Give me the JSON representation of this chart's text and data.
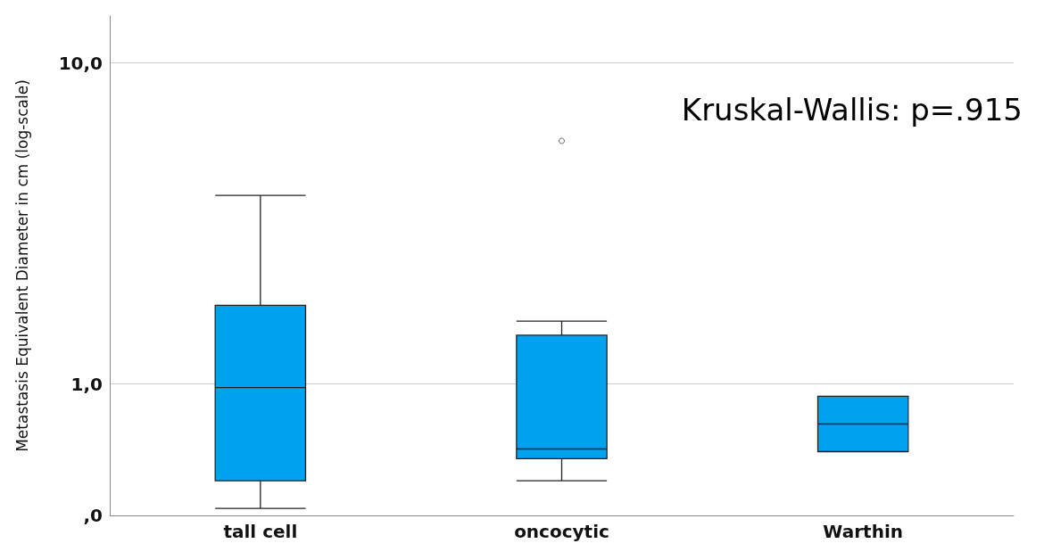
{
  "chart_data": {
    "type": "box",
    "ylabel": "Metastasis Equivalent Diameter in cm (log-scale)",
    "categories": [
      "tall cell",
      "oncocytic",
      "Warthin"
    ],
    "color": "#00a2f0",
    "log": "y",
    "ylim": [
      0.39,
      14
    ],
    "yticks": [
      {
        "value": 0.39,
        "label": ",0"
      },
      {
        "value": 1,
        "label": "1,0"
      },
      {
        "value": 10,
        "label": "10,0"
      }
    ],
    "grid": "y",
    "boxes": [
      {
        "low": 0.41,
        "q1": 0.5,
        "median": 0.975,
        "q3": 1.76,
        "high": 3.87
      },
      {
        "low": 0.5,
        "q1": 0.586,
        "median": 0.628,
        "q3": 1.42,
        "high": 1.57,
        "outliers": [
          5.72
        ]
      },
      {
        "low": 0.616,
        "q1": 0.616,
        "median": 0.751,
        "q3": 0.917,
        "high": 0.917
      }
    ],
    "annotations": [
      "Kruskal-Wallis: p=.915"
    ]
  }
}
